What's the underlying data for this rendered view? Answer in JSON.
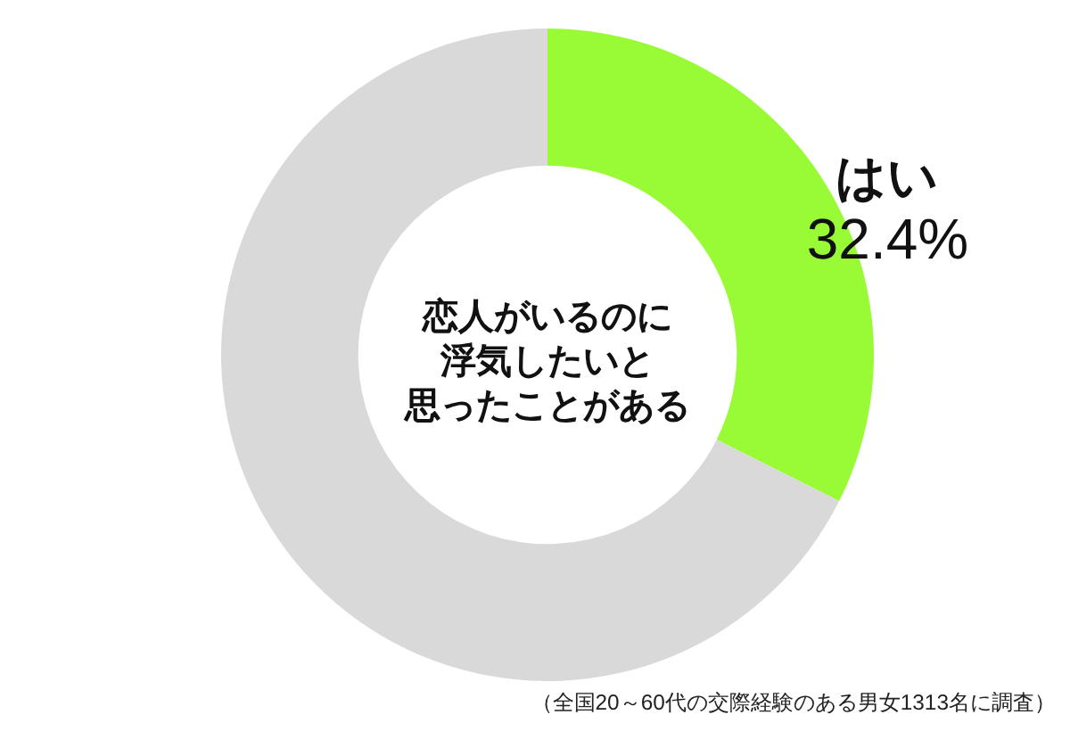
{
  "chart_data": {
    "type": "donut",
    "title": "恋人がいるのに浮気したいと思ったことがある",
    "categories": [
      "はい",
      null
    ],
    "values": [
      32.4,
      67.6
    ],
    "colors": [
      "#99fb35",
      "#d9d9d9"
    ],
    "value_labels": [
      "32.4%",
      null
    ],
    "annotations": [
      "（全国20～60代の交際経験のある男女1313名に調査）"
    ]
  }
}
